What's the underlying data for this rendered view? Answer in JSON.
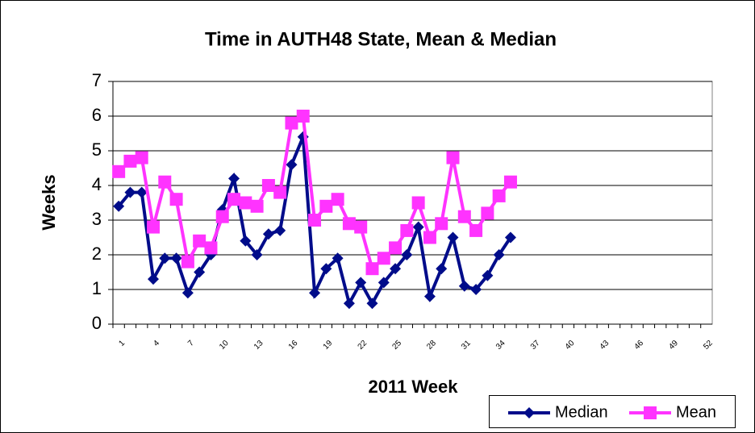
{
  "chart_data": {
    "type": "line",
    "title": "Time in AUTH48 State, Mean & Median",
    "x_label": "2011 Week",
    "y_label": "Weeks",
    "categories": [
      "1",
      null,
      null,
      "4",
      null,
      null,
      "7",
      null,
      null,
      "10",
      null,
      null,
      "13",
      null,
      null,
      "16",
      null,
      null,
      "19",
      null,
      null,
      "22",
      null,
      null,
      "25",
      null,
      null,
      "28",
      null,
      null,
      "31",
      null,
      null,
      "34",
      null,
      null,
      "37",
      null,
      null,
      "40",
      null,
      null,
      "43",
      null,
      null,
      "46",
      null,
      null,
      "49",
      null,
      null,
      "52"
    ],
    "series": [
      {
        "name": "Median",
        "color": "#000c8a",
        "marker": "diamond",
        "values": [
          3.4,
          3.8,
          3.8,
          1.3,
          1.9,
          1.9,
          0.9,
          1.5,
          2.0,
          3.3,
          4.2,
          2.4,
          2.0,
          2.6,
          2.7,
          4.6,
          5.4,
          0.9,
          1.6,
          1.9,
          0.6,
          1.2,
          0.6,
          1.2,
          1.6,
          2.0,
          2.8,
          0.8,
          1.6,
          2.5,
          1.1,
          1.0,
          1.4,
          2.0,
          2.5,
          null,
          null,
          null,
          null,
          null,
          null,
          null,
          null,
          null,
          null,
          null,
          null,
          null,
          null,
          null,
          null,
          null
        ]
      },
      {
        "name": "Mean",
        "color": "#ff33ff",
        "marker": "square",
        "values": [
          4.4,
          4.7,
          4.8,
          2.8,
          4.1,
          3.6,
          1.8,
          2.4,
          2.2,
          3.1,
          3.6,
          3.5,
          3.4,
          4.0,
          3.8,
          5.8,
          6.0,
          3.0,
          3.4,
          3.6,
          2.9,
          2.8,
          1.6,
          1.9,
          2.2,
          2.7,
          3.5,
          2.5,
          2.9,
          4.8,
          3.1,
          2.7,
          3.2,
          3.7,
          4.1,
          null,
          null,
          null,
          null,
          null,
          null,
          null,
          null,
          null,
          null,
          null,
          null,
          null,
          null,
          null,
          null,
          null
        ]
      }
    ],
    "ylim": [
      0,
      7
    ],
    "yticks": [
      0,
      1,
      2,
      3,
      4,
      5,
      6,
      7
    ],
    "grid": true,
    "legend": "bottom-right"
  }
}
